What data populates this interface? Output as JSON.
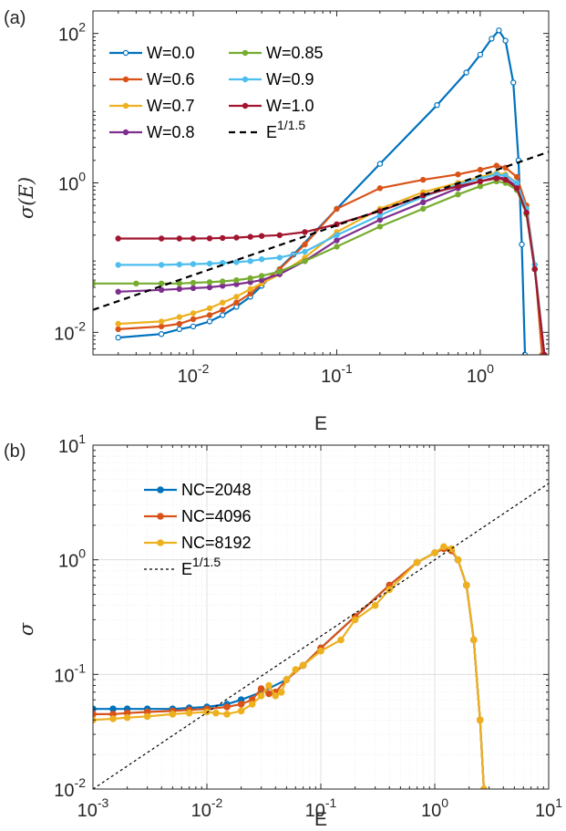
{
  "panel_a": {
    "label": "(a)",
    "ylabel": "σ(E)",
    "xlabel": "E"
  },
  "panel_b": {
    "label": "(b)",
    "ylabel": "σ",
    "xlabel": "E"
  },
  "chart_data": [
    {
      "type": "line",
      "panel": "(a)",
      "xlabel": "E",
      "ylabel": "σ(E)",
      "xscale": "log",
      "yscale": "log",
      "xlim": [
        0.002,
        3
      ],
      "ylim": [
        0.005,
        200
      ],
      "xticks": [
        {
          "mantissa": "10",
          "exp": "-2"
        },
        {
          "mantissa": "10",
          "exp": "-1"
        },
        {
          "mantissa": "10",
          "exp": "0"
        }
      ],
      "yticks": [
        {
          "mantissa": "10",
          "exp": "-2"
        },
        {
          "mantissa": "10",
          "exp": "0"
        },
        {
          "mantissa": "10",
          "exp": "2"
        }
      ],
      "grid": false,
      "legend": {
        "placement": "top-left",
        "columns": 2
      },
      "series": [
        {
          "name": "W=0.0",
          "color": "#0072BD",
          "x": [
            0.003,
            0.006,
            0.008,
            0.01,
            0.013,
            0.016,
            0.02,
            0.025,
            0.03,
            0.05,
            0.1,
            0.2,
            0.5,
            0.8,
            1.0,
            1.2,
            1.35,
            1.5,
            1.7,
            1.85,
            1.95,
            2.05
          ],
          "y": [
            0.0085,
            0.0095,
            0.011,
            0.012,
            0.014,
            0.017,
            0.022,
            0.03,
            0.042,
            0.11,
            0.45,
            1.8,
            11,
            30,
            52,
            85,
            110,
            80,
            22,
            2,
            0.15,
            0.005
          ]
        },
        {
          "name": "W=0.6",
          "color": "#D95319",
          "x": [
            0.003,
            0.006,
            0.008,
            0.01,
            0.013,
            0.016,
            0.02,
            0.025,
            0.03,
            0.04,
            0.06,
            0.1,
            0.2,
            0.4,
            0.7,
            1.0,
            1.3,
            1.5,
            1.8,
            2.1,
            2.4,
            2.7
          ],
          "y": [
            0.011,
            0.012,
            0.013,
            0.015,
            0.017,
            0.02,
            0.025,
            0.033,
            0.045,
            0.07,
            0.15,
            0.45,
            0.85,
            1.1,
            1.3,
            1.5,
            1.7,
            1.6,
            1.2,
            0.5,
            0.08,
            0.005
          ]
        },
        {
          "name": "W=0.7",
          "color": "#EDB120",
          "x": [
            0.003,
            0.006,
            0.008,
            0.01,
            0.013,
            0.016,
            0.02,
            0.025,
            0.03,
            0.04,
            0.06,
            0.1,
            0.2,
            0.4,
            0.7,
            1.0,
            1.3,
            1.5,
            1.8,
            2.1,
            2.4,
            2.8
          ],
          "y": [
            0.013,
            0.014,
            0.016,
            0.018,
            0.021,
            0.025,
            0.03,
            0.038,
            0.045,
            0.06,
            0.1,
            0.22,
            0.45,
            0.75,
            1.0,
            1.2,
            1.35,
            1.3,
            1.0,
            0.45,
            0.08,
            0.005
          ]
        },
        {
          "name": "W=0.8",
          "color": "#7E2F8E",
          "x": [
            0.003,
            0.006,
            0.008,
            0.01,
            0.013,
            0.016,
            0.02,
            0.025,
            0.03,
            0.04,
            0.06,
            0.1,
            0.2,
            0.4,
            0.7,
            1.0,
            1.3,
            1.5,
            1.8,
            2.1,
            2.4,
            2.8
          ],
          "y": [
            0.035,
            0.037,
            0.038,
            0.039,
            0.04,
            0.042,
            0.044,
            0.047,
            0.05,
            0.06,
            0.09,
            0.17,
            0.32,
            0.55,
            0.85,
            1.05,
            1.2,
            1.15,
            0.9,
            0.4,
            0.07,
            0.005
          ]
        },
        {
          "name": "W=0.85",
          "color": "#77AC30",
          "x": [
            0.002,
            0.004,
            0.006,
            0.008,
            0.01,
            0.013,
            0.016,
            0.02,
            0.025,
            0.03,
            0.04,
            0.06,
            0.1,
            0.2,
            0.4,
            0.7,
            1.0,
            1.3,
            1.5,
            1.8,
            2.1,
            2.4,
            2.8
          ],
          "y": [
            0.045,
            0.045,
            0.045,
            0.045,
            0.046,
            0.047,
            0.048,
            0.05,
            0.053,
            0.057,
            0.065,
            0.09,
            0.14,
            0.26,
            0.45,
            0.7,
            0.9,
            1.05,
            1.0,
            0.8,
            0.38,
            0.07,
            0.005
          ]
        },
        {
          "name": "W=0.9",
          "color": "#4DBEEE",
          "x": [
            0.003,
            0.006,
            0.008,
            0.01,
            0.013,
            0.016,
            0.02,
            0.025,
            0.03,
            0.04,
            0.06,
            0.1,
            0.2,
            0.4,
            0.7,
            1.0,
            1.3,
            1.5,
            1.8,
            2.1,
            2.4,
            2.8
          ],
          "y": [
            0.08,
            0.08,
            0.081,
            0.082,
            0.083,
            0.085,
            0.087,
            0.09,
            0.095,
            0.1,
            0.12,
            0.2,
            0.37,
            0.65,
            0.95,
            1.15,
            1.3,
            1.25,
            1.0,
            0.45,
            0.08,
            0.005
          ]
        },
        {
          "name": "W=1.0",
          "color": "#A2142F",
          "x": [
            0.003,
            0.006,
            0.008,
            0.01,
            0.013,
            0.016,
            0.02,
            0.025,
            0.03,
            0.04,
            0.06,
            0.1,
            0.2,
            0.4,
            0.7,
            1.0,
            1.3,
            1.5,
            1.8,
            2.1,
            2.4,
            2.8
          ],
          "y": [
            0.18,
            0.18,
            0.18,
            0.18,
            0.181,
            0.183,
            0.185,
            0.19,
            0.195,
            0.2,
            0.22,
            0.28,
            0.42,
            0.68,
            0.9,
            1.05,
            1.15,
            1.1,
            0.85,
            0.4,
            0.07,
            0.005
          ]
        },
        {
          "name": "E^{1/1.5}",
          "color": "#000000",
          "dashed": true,
          "x": [
            0.002,
            3
          ],
          "y": [
            0.02,
            2.6
          ]
        }
      ]
    },
    {
      "type": "line",
      "panel": "(b)",
      "xlabel": "E",
      "ylabel": "σ",
      "xscale": "log",
      "yscale": "log",
      "xlim": [
        0.001,
        10
      ],
      "ylim": [
        0.01,
        10
      ],
      "xticks": [
        {
          "mantissa": "10",
          "exp": "-3"
        },
        {
          "mantissa": "10",
          "exp": "-2"
        },
        {
          "mantissa": "10",
          "exp": "-1"
        },
        {
          "mantissa": "10",
          "exp": "0"
        },
        {
          "mantissa": "10",
          "exp": "1"
        }
      ],
      "yticks": [
        {
          "mantissa": "10",
          "exp": "-2"
        },
        {
          "mantissa": "10",
          "exp": "-1"
        },
        {
          "mantissa": "10",
          "exp": "0"
        },
        {
          "mantissa": "10",
          "exp": "1"
        }
      ],
      "grid": true,
      "legend": {
        "placement": "top-left",
        "columns": 1
      },
      "series": [
        {
          "name": "NC=2048",
          "color": "#0072BD",
          "x": [
            0.001,
            0.0015,
            0.002,
            0.003,
            0.005,
            0.007,
            0.01,
            0.015,
            0.02,
            0.03,
            0.05,
            0.07,
            0.1,
            0.2,
            0.4,
            0.7,
            1.0,
            1.2,
            1.4,
            1.6,
            1.9,
            2.2,
            2.5,
            2.7
          ],
          "y": [
            0.05,
            0.05,
            0.05,
            0.05,
            0.05,
            0.051,
            0.052,
            0.055,
            0.06,
            0.07,
            0.09,
            0.12,
            0.17,
            0.32,
            0.6,
            0.95,
            1.15,
            1.25,
            1.2,
            1.0,
            0.6,
            0.2,
            0.04,
            0.01
          ]
        },
        {
          "name": "NC=4096",
          "color": "#D95319",
          "x": [
            0.001,
            0.0015,
            0.002,
            0.003,
            0.005,
            0.007,
            0.01,
            0.015,
            0.02,
            0.025,
            0.03,
            0.035,
            0.04,
            0.05,
            0.07,
            0.1,
            0.2,
            0.4,
            0.7,
            1.0,
            1.2,
            1.4,
            1.6,
            1.9,
            2.2,
            2.5,
            2.7
          ],
          "y": [
            0.045,
            0.045,
            0.046,
            0.047,
            0.048,
            0.049,
            0.05,
            0.052,
            0.055,
            0.06,
            0.075,
            0.068,
            0.07,
            0.09,
            0.12,
            0.17,
            0.32,
            0.6,
            0.95,
            1.15,
            1.25,
            1.2,
            1.0,
            0.6,
            0.2,
            0.04,
            0.01
          ]
        },
        {
          "name": "NC=8192",
          "color": "#EDB120",
          "x": [
            0.001,
            0.0015,
            0.002,
            0.003,
            0.005,
            0.007,
            0.01,
            0.012,
            0.015,
            0.02,
            0.025,
            0.03,
            0.035,
            0.04,
            0.045,
            0.05,
            0.06,
            0.07,
            0.1,
            0.15,
            0.2,
            0.3,
            0.4,
            0.7,
            1.0,
            1.2,
            1.4,
            1.6,
            1.9,
            2.2,
            2.5,
            2.7
          ],
          "y": [
            0.04,
            0.041,
            0.042,
            0.043,
            0.045,
            0.046,
            0.047,
            0.046,
            0.045,
            0.048,
            0.055,
            0.065,
            0.08,
            0.065,
            0.07,
            0.09,
            0.11,
            0.12,
            0.16,
            0.2,
            0.3,
            0.4,
            0.55,
            0.95,
            1.15,
            1.3,
            1.25,
            1.0,
            0.6,
            0.2,
            0.04,
            0.01
          ]
        },
        {
          "name": "E^{1/1.5}",
          "color": "#000000",
          "dashed": true,
          "x": [
            0.001,
            10
          ],
          "y": [
            0.01,
            4.64
          ]
        }
      ]
    }
  ]
}
